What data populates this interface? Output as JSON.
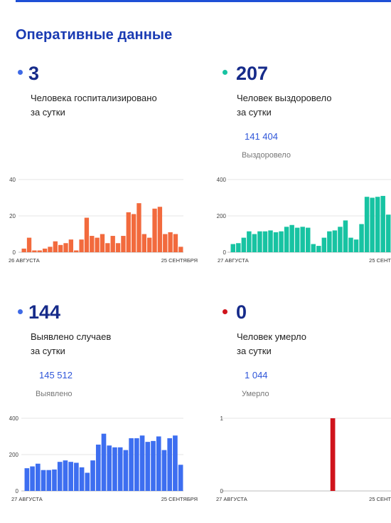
{
  "page": {
    "title": "Оперативные данные"
  },
  "cards": [
    {
      "id": "hospitalized",
      "value": "3",
      "desc_line1": "Человека госпитализировано",
      "desc_line2": "за сутки",
      "total": "",
      "total_label": "",
      "accent": "#3f6ae6"
    },
    {
      "id": "recovered",
      "value": "207",
      "desc_line1": "Человек выздоровело",
      "desc_line2": "за сутки",
      "total": "141 404",
      "total_label": "Выздоровело",
      "accent": "#17c3a2"
    },
    {
      "id": "cases",
      "value": "144",
      "desc_line1": "Выявлено случаев",
      "desc_line2": "за сутки",
      "total": "145 512",
      "total_label": "Выявлено",
      "accent": "#3f6ae6"
    },
    {
      "id": "deaths",
      "value": "0",
      "desc_line1": "Человек умерло",
      "desc_line2": "за сутки",
      "total": "1 044",
      "total_label": "Умерло",
      "accent": "#d0141c"
    }
  ],
  "chart_data": [
    {
      "type": "bar",
      "id": "hospitalized",
      "color": "#f26a3d",
      "yticks": [
        0,
        20,
        40
      ],
      "ylim": [
        0,
        40
      ],
      "x_start_label": "26 АВГУСТА",
      "x_end_label": "25 СЕНТЯБРЯ",
      "values": [
        2,
        8,
        1,
        1,
        2,
        3,
        6,
        4,
        5,
        7,
        1,
        7,
        19,
        9,
        8,
        10,
        5,
        9,
        5,
        9,
        22,
        21,
        27,
        10,
        8,
        24,
        25,
        10,
        11,
        10,
        3
      ]
    },
    {
      "type": "bar",
      "id": "recovered",
      "color": "#17c3a2",
      "yticks": [
        0,
        200,
        400
      ],
      "ylim": [
        0,
        400
      ],
      "x_start_label": "27 АВГУСТА",
      "x_end_label": "25 СЕНТ",
      "values": [
        45,
        50,
        80,
        115,
        100,
        115,
        115,
        120,
        110,
        115,
        140,
        150,
        135,
        140,
        135,
        45,
        35,
        80,
        115,
        120,
        140,
        175,
        80,
        70,
        155,
        305,
        300,
        305,
        310,
        207
      ]
    },
    {
      "type": "bar",
      "id": "cases",
      "color": "#3d6ef0",
      "yticks": [
        0,
        200,
        400
      ],
      "ylim": [
        0,
        400
      ],
      "x_start_label": "27 АВГУСТА",
      "x_end_label": "25 СЕНТЯБРЯ",
      "values": [
        125,
        135,
        150,
        115,
        115,
        118,
        160,
        168,
        160,
        155,
        130,
        100,
        168,
        255,
        315,
        250,
        240,
        240,
        225,
        290,
        290,
        305,
        270,
        275,
        300,
        225,
        290,
        305,
        144
      ]
    },
    {
      "type": "bar",
      "id": "deaths",
      "color": "#d0141c",
      "yticks": [
        0,
        1
      ],
      "ylim": [
        0,
        1
      ],
      "x_start_label": "27 АВГУСТА",
      "x_end_label": "25 СЕНТ",
      "values": [
        0,
        0,
        0,
        0,
        0,
        0,
        0,
        0,
        0,
        0,
        0,
        0,
        0,
        0,
        0,
        0,
        0,
        0,
        0,
        1,
        0,
        0,
        0,
        0,
        0,
        0,
        0,
        0,
        0,
        0
      ]
    }
  ]
}
